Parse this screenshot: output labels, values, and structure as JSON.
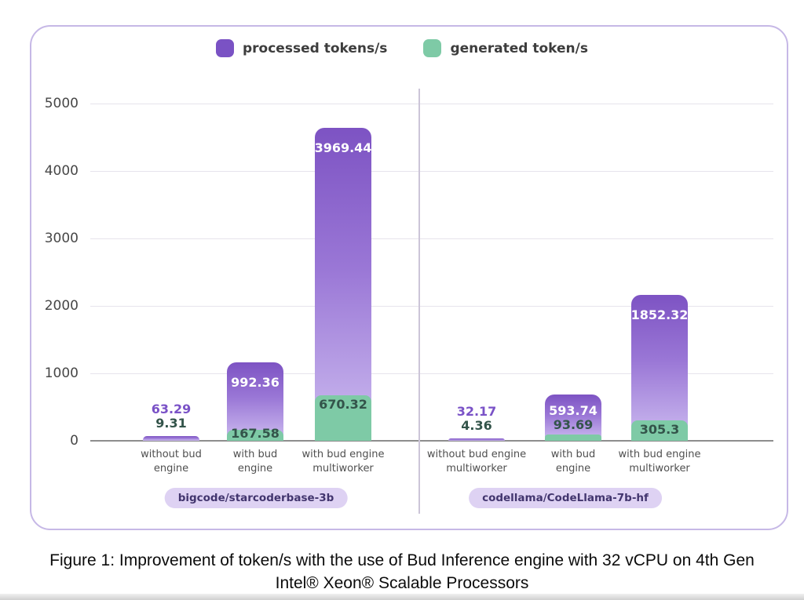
{
  "legend": [
    {
      "label": "processed tokens/s",
      "color": "#7a52c4"
    },
    {
      "label": "generated token/s",
      "color": "#7ecaa6"
    }
  ],
  "chart_data": {
    "type": "bar",
    "stacked": true,
    "title": "",
    "xlabel": "",
    "ylabel": "",
    "ylim": [
      0,
      5000
    ],
    "yticks": [
      0,
      1000,
      2000,
      3000,
      4000,
      5000
    ],
    "grid": true,
    "legend_position": "top",
    "series": [
      {
        "name": "processed tokens/s",
        "color": "#7a52c4"
      },
      {
        "name": "generated token/s",
        "color": "#7ecaa6"
      }
    ],
    "groups": [
      {
        "name": "bigcode/starcoderbase-3b",
        "bars": [
          {
            "label_lines": [
              "without bud",
              "engine"
            ],
            "processed": 63.29,
            "generated": 9.31
          },
          {
            "label_lines": [
              "with bud",
              "engine"
            ],
            "processed": 992.36,
            "generated": 167.58
          },
          {
            "label_lines": [
              "with bud engine",
              "multiworker"
            ],
            "processed": 3969.44,
            "generated": 670.32
          }
        ]
      },
      {
        "name": "codellama/CodeLlama-7b-hf",
        "bars": [
          {
            "label_lines": [
              "without bud engine",
              "multiworker"
            ],
            "processed": 32.17,
            "generated": 4.36
          },
          {
            "label_lines": [
              "with bud",
              "engine"
            ],
            "processed": 593.74,
            "generated": 93.69
          },
          {
            "label_lines": [
              "with bud engine",
              "multiworker"
            ],
            "processed": 1852.32,
            "generated": 305.3
          }
        ]
      }
    ]
  },
  "caption": {
    "line1": "Figure 1: Improvement of token/s with the use of Bud Inference engine with 32 vCPU on 4th Gen",
    "line2": "Intel® Xeon® Scalable Processors"
  },
  "colors": {
    "processed": "#7a52c4",
    "generated": "#7ecaa6",
    "card_border": "#c6b8e6",
    "badge_bg": "#ded2f3",
    "badge_text": "#42356e",
    "value_text_processed": "#7a52c7",
    "value_text_generated": "#33544a"
  }
}
